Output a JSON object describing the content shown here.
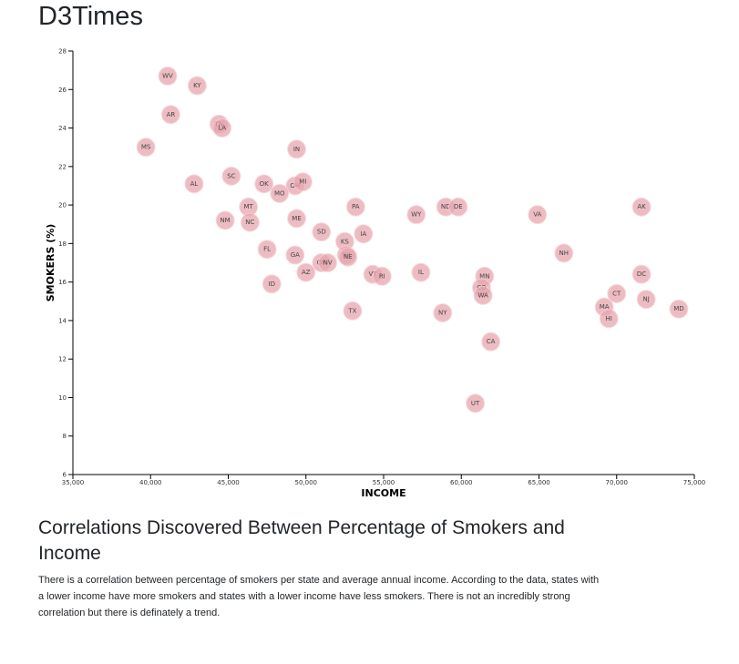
{
  "site": {
    "title": "D3Times"
  },
  "article": {
    "heading": "Correlations Discovered Between Percentage of Smokers and Income",
    "body": "There is a correlation between percentage of smokers per state and average annual income. According to the data, states with a lower income have more smokers and states with a lower income have less smokers. There is not an incredibly strong correlation but there is definately a trend."
  },
  "chart_data": {
    "type": "scatter",
    "xlabel": "INCOME",
    "ylabel": "SMOKERS (%)",
    "xlim": [
      35000,
      75000
    ],
    "ylim": [
      6,
      28
    ],
    "x_ticks": [
      35000,
      40000,
      45000,
      50000,
      55000,
      60000,
      65000,
      70000,
      75000
    ],
    "x_tick_labels": [
      "35,000",
      "40,000",
      "45,000",
      "50,000",
      "55,000",
      "60,000",
      "65,000",
      "70,000",
      "75,000"
    ],
    "y_ticks": [
      6,
      8,
      10,
      12,
      14,
      16,
      18,
      20,
      22,
      24,
      26,
      28
    ],
    "y_tick_labels": [
      "6",
      "8",
      "10",
      "12",
      "14",
      "16",
      "18",
      "20",
      "22",
      "24",
      "26",
      "28"
    ],
    "grid": false,
    "marker_color": "#e8a6ae",
    "points": [
      {
        "abbr": "WV",
        "income": 41100,
        "smokers": 26.7
      },
      {
        "abbr": "KY",
        "income": 43000,
        "smokers": 26.2
      },
      {
        "abbr": "AR",
        "income": 41300,
        "smokers": 24.7
      },
      {
        "abbr": "TN",
        "income": 44400,
        "smokers": 24.2
      },
      {
        "abbr": "LA",
        "income": 44600,
        "smokers": 24.0
      },
      {
        "abbr": "MS",
        "income": 39700,
        "smokers": 23.0
      },
      {
        "abbr": "IN",
        "income": 49400,
        "smokers": 22.9
      },
      {
        "abbr": "SC",
        "income": 45200,
        "smokers": 21.5
      },
      {
        "abbr": "AL",
        "income": 42800,
        "smokers": 21.1
      },
      {
        "abbr": "OK",
        "income": 47300,
        "smokers": 21.1
      },
      {
        "abbr": "OH",
        "income": 49300,
        "smokers": 21.0
      },
      {
        "abbr": "MI",
        "income": 49800,
        "smokers": 21.2
      },
      {
        "abbr": "MO",
        "income": 48300,
        "smokers": 20.6
      },
      {
        "abbr": "MT",
        "income": 46300,
        "smokers": 19.9
      },
      {
        "abbr": "PA",
        "income": 53200,
        "smokers": 19.9
      },
      {
        "abbr": "ND",
        "income": 59000,
        "smokers": 19.9
      },
      {
        "abbr": "DE",
        "income": 59800,
        "smokers": 19.9
      },
      {
        "abbr": "AK",
        "income": 71600,
        "smokers": 19.9
      },
      {
        "abbr": "WY",
        "income": 57100,
        "smokers": 19.5
      },
      {
        "abbr": "VA",
        "income": 64900,
        "smokers": 19.5
      },
      {
        "abbr": "ME",
        "income": 49400,
        "smokers": 19.3
      },
      {
        "abbr": "NM",
        "income": 44800,
        "smokers": 19.2
      },
      {
        "abbr": "NC",
        "income": 46400,
        "smokers": 19.1
      },
      {
        "abbr": "SD",
        "income": 51000,
        "smokers": 18.6
      },
      {
        "abbr": "IA",
        "income": 53700,
        "smokers": 18.5
      },
      {
        "abbr": "KS",
        "income": 52500,
        "smokers": 18.1
      },
      {
        "abbr": "FL",
        "income": 47500,
        "smokers": 17.7
      },
      {
        "abbr": "NH",
        "income": 66600,
        "smokers": 17.5
      },
      {
        "abbr": "GA",
        "income": 49300,
        "smokers": 17.4
      },
      {
        "abbr": "WI",
        "income": 52600,
        "smokers": 17.4
      },
      {
        "abbr": "NE",
        "income": 52700,
        "smokers": 17.3
      },
      {
        "abbr": "OR",
        "income": 51000,
        "smokers": 17.0
      },
      {
        "abbr": "NV",
        "income": 51400,
        "smokers": 17.0
      },
      {
        "abbr": "AZ",
        "income": 50000,
        "smokers": 16.5
      },
      {
        "abbr": "IL",
        "income": 57400,
        "smokers": 16.5
      },
      {
        "abbr": "VT",
        "income": 54300,
        "smokers": 16.4
      },
      {
        "abbr": "RI",
        "income": 54900,
        "smokers": 16.3
      },
      {
        "abbr": "MN",
        "income": 61500,
        "smokers": 16.3
      },
      {
        "abbr": "DC",
        "income": 71600,
        "smokers": 16.4
      },
      {
        "abbr": "ID",
        "income": 47800,
        "smokers": 15.9
      },
      {
        "abbr": "CO",
        "income": 61300,
        "smokers": 15.7
      },
      {
        "abbr": "WA",
        "income": 61400,
        "smokers": 15.3
      },
      {
        "abbr": "CT",
        "income": 70000,
        "smokers": 15.4
      },
      {
        "abbr": "NJ",
        "income": 71900,
        "smokers": 15.1
      },
      {
        "abbr": "MA",
        "income": 69200,
        "smokers": 14.7
      },
      {
        "abbr": "MD",
        "income": 74000,
        "smokers": 14.6
      },
      {
        "abbr": "TX",
        "income": 53000,
        "smokers": 14.5
      },
      {
        "abbr": "NY",
        "income": 58800,
        "smokers": 14.4
      },
      {
        "abbr": "HI",
        "income": 69500,
        "smokers": 14.1
      },
      {
        "abbr": "CA",
        "income": 61900,
        "smokers": 12.9
      },
      {
        "abbr": "UT",
        "income": 60900,
        "smokers": 9.7
      }
    ]
  }
}
